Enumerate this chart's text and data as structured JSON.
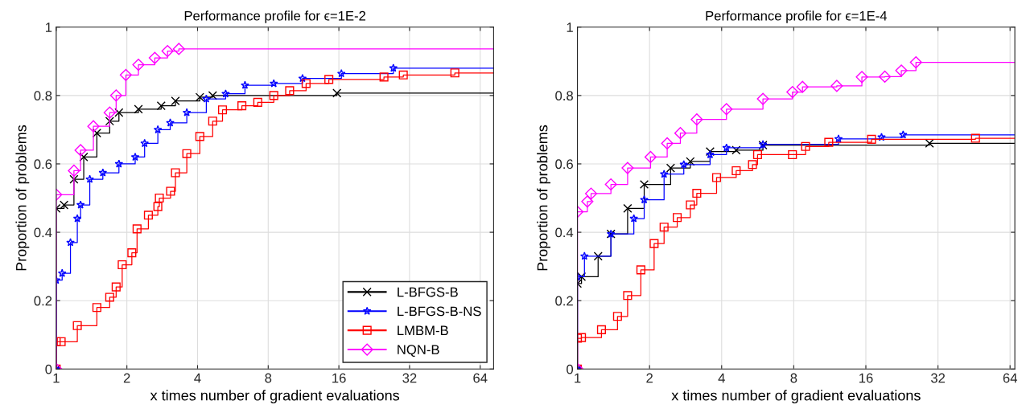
{
  "chart_data": [
    {
      "type": "step",
      "title": "Performance profile for ϵ=1E-2",
      "xlabel": "x times number of gradient evaluations",
      "ylabel": "Proportion of problems",
      "log": "x",
      "xlim": [
        1,
        73
      ],
      "xticks": [
        1,
        2,
        4,
        8,
        16,
        32,
        64
      ],
      "ylim": [
        0,
        1
      ],
      "yticks": [
        0,
        0.2,
        0.4,
        0.6,
        0.8,
        1
      ],
      "grid": true,
      "legend": "bottom right",
      "line_style": "solid",
      "series": [
        {
          "name": "L-BFGS-B",
          "color": "#000000",
          "marker": "cross",
          "x": [
            1,
            1,
            1.08,
            1.19,
            1.31,
            1.49,
            1.69,
            1.85,
            2.24,
            2.8,
            3.22,
            4.09,
            4.64,
            15.7,
            73
          ],
          "values": [
            0,
            0.47,
            0.48,
            0.555,
            0.62,
            0.69,
            0.725,
            0.75,
            0.76,
            0.77,
            0.784,
            0.795,
            0.8,
            0.807,
            0.807
          ]
        },
        {
          "name": "L-BFGS-B-NS",
          "color": "#0000ff",
          "marker": "star",
          "x": [
            1,
            1,
            1.06,
            1.15,
            1.23,
            1.27,
            1.39,
            1.58,
            1.85,
            2.17,
            2.38,
            2.71,
            3.06,
            3.6,
            4.36,
            5.27,
            6.37,
            8.45,
            11.2,
            16.4,
            27.3,
            73
          ],
          "values": [
            0,
            0.26,
            0.28,
            0.37,
            0.44,
            0.48,
            0.555,
            0.574,
            0.6,
            0.62,
            0.66,
            0.7,
            0.72,
            0.75,
            0.79,
            0.805,
            0.83,
            0.835,
            0.85,
            0.864,
            0.88,
            0.88
          ]
        },
        {
          "name": "LMBM-B",
          "color": "#ff0000",
          "marker": "square",
          "x": [
            1,
            1,
            1.05,
            1.23,
            1.49,
            1.69,
            1.8,
            1.91,
            2.1,
            2.21,
            2.47,
            2.71,
            2.75,
            3.07,
            3.22,
            3.6,
            4.09,
            4.64,
            5.11,
            6.18,
            7.22,
            8.45,
            9.87,
            11.6,
            14.5,
            24.9,
            30.1,
            49.9,
            73
          ],
          "values": [
            0,
            0.08,
            0.08,
            0.127,
            0.18,
            0.21,
            0.24,
            0.305,
            0.34,
            0.41,
            0.45,
            0.475,
            0.5,
            0.52,
            0.574,
            0.63,
            0.68,
            0.725,
            0.758,
            0.77,
            0.78,
            0.8,
            0.814,
            0.835,
            0.847,
            0.854,
            0.86,
            0.866,
            0.866
          ]
        },
        {
          "name": "NQN-B",
          "color": "#ff00ff",
          "marker": "diamond",
          "x": [
            1,
            1,
            1.19,
            1.27,
            1.44,
            1.69,
            1.8,
            1.98,
            2.24,
            2.63,
            2.98,
            3.33,
            73
          ],
          "values": [
            0,
            0.51,
            0.58,
            0.64,
            0.71,
            0.75,
            0.8,
            0.86,
            0.89,
            0.91,
            0.93,
            0.936,
            0.936
          ]
        }
      ]
    },
    {
      "type": "step",
      "title": "Performance profile for ϵ=1E-4",
      "xlabel": "x times number of gradient evaluations",
      "ylabel": "Proportion of problems",
      "log": "x",
      "xlim": [
        1,
        67
      ],
      "xticks": [
        1,
        2,
        4,
        8,
        16,
        32,
        64
      ],
      "ylim": [
        0,
        1
      ],
      "yticks": [
        0,
        0.2,
        0.4,
        0.6,
        0.8,
        1
      ],
      "grid": true,
      "line_style": "solid",
      "series": [
        {
          "color": "#000000",
          "marker": "cross",
          "x": [
            1,
            1,
            1.04,
            1.22,
            1.38,
            1.62,
            1.9,
            2.45,
            2.96,
            3.58,
            4.6,
            5.95,
            29.5,
            67
          ],
          "values": [
            0,
            0.25,
            0.27,
            0.33,
            0.395,
            0.47,
            0.54,
            0.588,
            0.607,
            0.636,
            0.64,
            0.655,
            0.66,
            0.66
          ]
        },
        {
          "color": "#0000ff",
          "marker": "star",
          "x": [
            1,
            1,
            1.07,
            1.38,
            1.72,
            1.9,
            2.3,
            2.78,
            3.58,
            4.19,
            5.95,
            12.3,
            18.6,
            22.9,
            67
          ],
          "values": [
            0,
            0.27,
            0.33,
            0.395,
            0.44,
            0.495,
            0.57,
            0.598,
            0.627,
            0.647,
            0.657,
            0.673,
            0.678,
            0.685,
            0.685
          ]
        },
        {
          "color": "#ff0000",
          "marker": "square",
          "x": [
            1,
            1,
            1.04,
            1.26,
            1.47,
            1.62,
            1.84,
            2.09,
            2.3,
            2.61,
            2.96,
            3.15,
            3.81,
            4.6,
            5.38,
            5.65,
            7.9,
            8.96,
            11.2,
            16.9,
            45.9,
            67
          ],
          "values": [
            0,
            0.09,
            0.092,
            0.115,
            0.154,
            0.215,
            0.29,
            0.367,
            0.415,
            0.443,
            0.48,
            0.514,
            0.56,
            0.58,
            0.598,
            0.627,
            0.627,
            0.651,
            0.663,
            0.672,
            0.675,
            0.675
          ]
        },
        {
          "color": "#ff00ff",
          "marker": "diamond",
          "x": [
            1,
            1,
            1.1,
            1.14,
            1.38,
            1.62,
            2.02,
            2.37,
            2.69,
            3.15,
            4.19,
            5.95,
            7.9,
            8.7,
            12.1,
            15.4,
            19.2,
            22.5,
            25.9,
            67
          ],
          "values": [
            0,
            0.46,
            0.49,
            0.513,
            0.54,
            0.588,
            0.62,
            0.66,
            0.69,
            0.73,
            0.76,
            0.79,
            0.81,
            0.825,
            0.828,
            0.854,
            0.855,
            0.873,
            0.897,
            0.897
          ]
        }
      ]
    }
  ]
}
